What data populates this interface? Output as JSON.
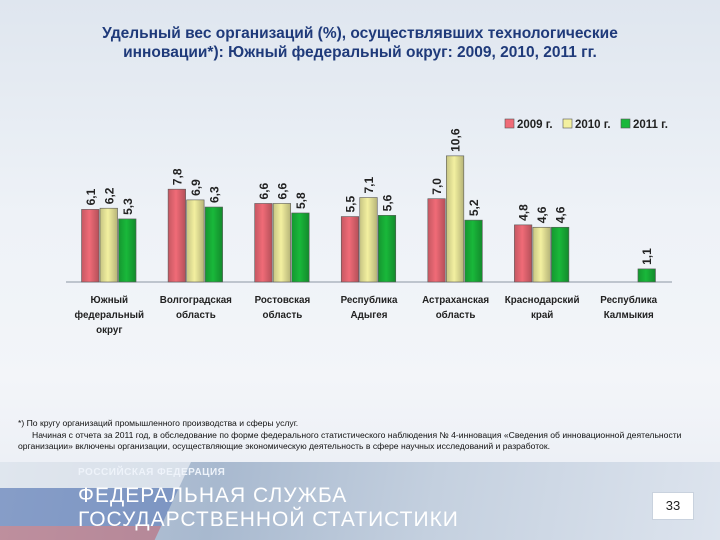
{
  "title_line1": "Удельный вес организаций (%), осуществлявших технологические",
  "title_line2": "инновации*): Южный федеральный округ: 2009, 2010, 2011 гг.",
  "colors": {
    "2009 г.": "#f06b77",
    "2010 г.": "#f3f0a0",
    "2011 г.": "#19b83a"
  },
  "chart_data": {
    "type": "bar",
    "title": "Удельный вес организаций (%), осуществлявших технологические инновации*): Южный федеральный округ: 2009, 2010, 2011 гг.",
    "categories": [
      [
        "Южный",
        "федеральный",
        "округ"
      ],
      [
        "Волгоградская",
        "область"
      ],
      [
        "Ростовская",
        "область"
      ],
      [
        "Республика",
        "Адыгея"
      ],
      [
        "Астраханская",
        "область"
      ],
      [
        "Краснодарский",
        "край"
      ],
      [
        "Республика",
        "Калмыкия"
      ]
    ],
    "series": [
      {
        "name": "2009 г.",
        "values": [
          6.1,
          7.8,
          6.6,
          5.5,
          7.0,
          4.8,
          null
        ],
        "labels": [
          "6,1",
          "7,8",
          "6,6",
          "5,5",
          "7,0",
          "4,8",
          ""
        ]
      },
      {
        "name": "2010 г.",
        "values": [
          6.2,
          6.9,
          6.6,
          7.1,
          10.6,
          4.6,
          null
        ],
        "labels": [
          "6,2",
          "6,9",
          "6,6",
          "7,1",
          "10,6",
          "4,6",
          ""
        ]
      },
      {
        "name": "2011 г.",
        "values": [
          5.3,
          6.3,
          5.8,
          5.6,
          5.2,
          4.6,
          1.1
        ],
        "labels": [
          "5,3",
          "6,3",
          "5,8",
          "5,6",
          "5,2",
          "4,6",
          "1,1"
        ]
      }
    ],
    "legend_position": "top-right",
    "ylim": [
      0,
      12
    ],
    "grid": false
  },
  "footnote": {
    "line1": "*) По кругу организаций промышленного производства и сферы услуг.",
    "line2": "Начиная с отчета за 2011 год, в обследование по форме федерального статистического наблюдения № 4-инновация «Сведения об инновационной деятельности организации» включены организации, осуществляющие экономическую деятельность в сфере научных исследований и разработок."
  },
  "banner": {
    "small": "РОССИЙСКАЯ ФЕДЕРАЦИЯ",
    "line1": "ФЕДЕРАЛЬНАЯ СЛУЖБА",
    "line2": "ГОСУДАРСТВЕННОЙ СТАТИСТИКИ"
  },
  "page_number": "33"
}
